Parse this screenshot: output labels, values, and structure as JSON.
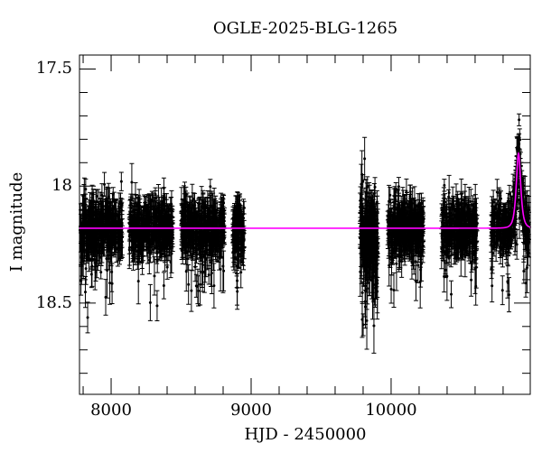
{
  "chart_data": {
    "type": "scatter",
    "title": "OGLE-2025-BLG-1265",
    "xlabel": "HJD - 2450000",
    "ylabel": "I magnitude",
    "xlim": [
      7774,
      10994
    ],
    "ylim": [
      17.44,
      18.89
    ],
    "y_inverted": true,
    "xtick_values": [
      8000,
      9000,
      10000
    ],
    "xtick_labels": [
      "8000",
      "9000",
      "10000"
    ],
    "x_minor_step": 200,
    "ytick_values": [
      17.5,
      18.0,
      18.5
    ],
    "ytick_labels": [
      "17.5",
      "18",
      "18.5"
    ],
    "y_minor_step": 0.1,
    "grid": false,
    "legend": false,
    "point_color": "#000000",
    "model_color": "#ff00ff",
    "frame_color": "#000000",
    "background_color": "#ffffff",
    "baseline_mag": 18.18,
    "model": {
      "type": "paczynski-point-lens",
      "t0": 10910,
      "tE": 19,
      "u0": 1.0,
      "baseline_mag": 18.18,
      "peak_mag": 17.86
    },
    "seed": 20251265,
    "seasons": [
      {
        "t_start": 7780,
        "t_end": 8080,
        "n": 400,
        "sigma": 0.058,
        "offset": 0,
        "outlier_frac": 0.04,
        "err_min": 0.025,
        "err_max": 0.085
      },
      {
        "t_start": 8130,
        "t_end": 8440,
        "n": 400,
        "sigma": 0.055,
        "offset": 0,
        "outlier_frac": 0.04,
        "err_min": 0.025,
        "err_max": 0.085
      },
      {
        "t_start": 8500,
        "t_end": 8810,
        "n": 400,
        "sigma": 0.055,
        "offset": 0,
        "outlier_frac": 0.04,
        "err_min": 0.025,
        "err_max": 0.085
      },
      {
        "t_start": 8868,
        "t_end": 8950,
        "n": 140,
        "sigma": 0.055,
        "offset": 0,
        "outlier_frac": 0.04,
        "err_min": 0.025,
        "err_max": 0.085
      },
      {
        "t_start": 9778,
        "t_end": 9905,
        "n": 230,
        "sigma": 0.09,
        "offset": 0.03,
        "outlier_frac": 0.1,
        "err_min": 0.03,
        "err_max": 0.11
      },
      {
        "t_start": 9975,
        "t_end": 10230,
        "n": 330,
        "sigma": 0.058,
        "offset": 0,
        "outlier_frac": 0.05,
        "err_min": 0.025,
        "err_max": 0.09
      },
      {
        "t_start": 10360,
        "t_end": 10615,
        "n": 320,
        "sigma": 0.058,
        "offset": 0,
        "outlier_frac": 0.05,
        "err_min": 0.025,
        "err_max": 0.09
      },
      {
        "t_start": 10715,
        "t_end": 10985,
        "n": 360,
        "sigma": 0.05,
        "offset": 0,
        "outlier_frac": 0.04,
        "err_min": 0.025,
        "err_max": 0.085
      }
    ]
  }
}
